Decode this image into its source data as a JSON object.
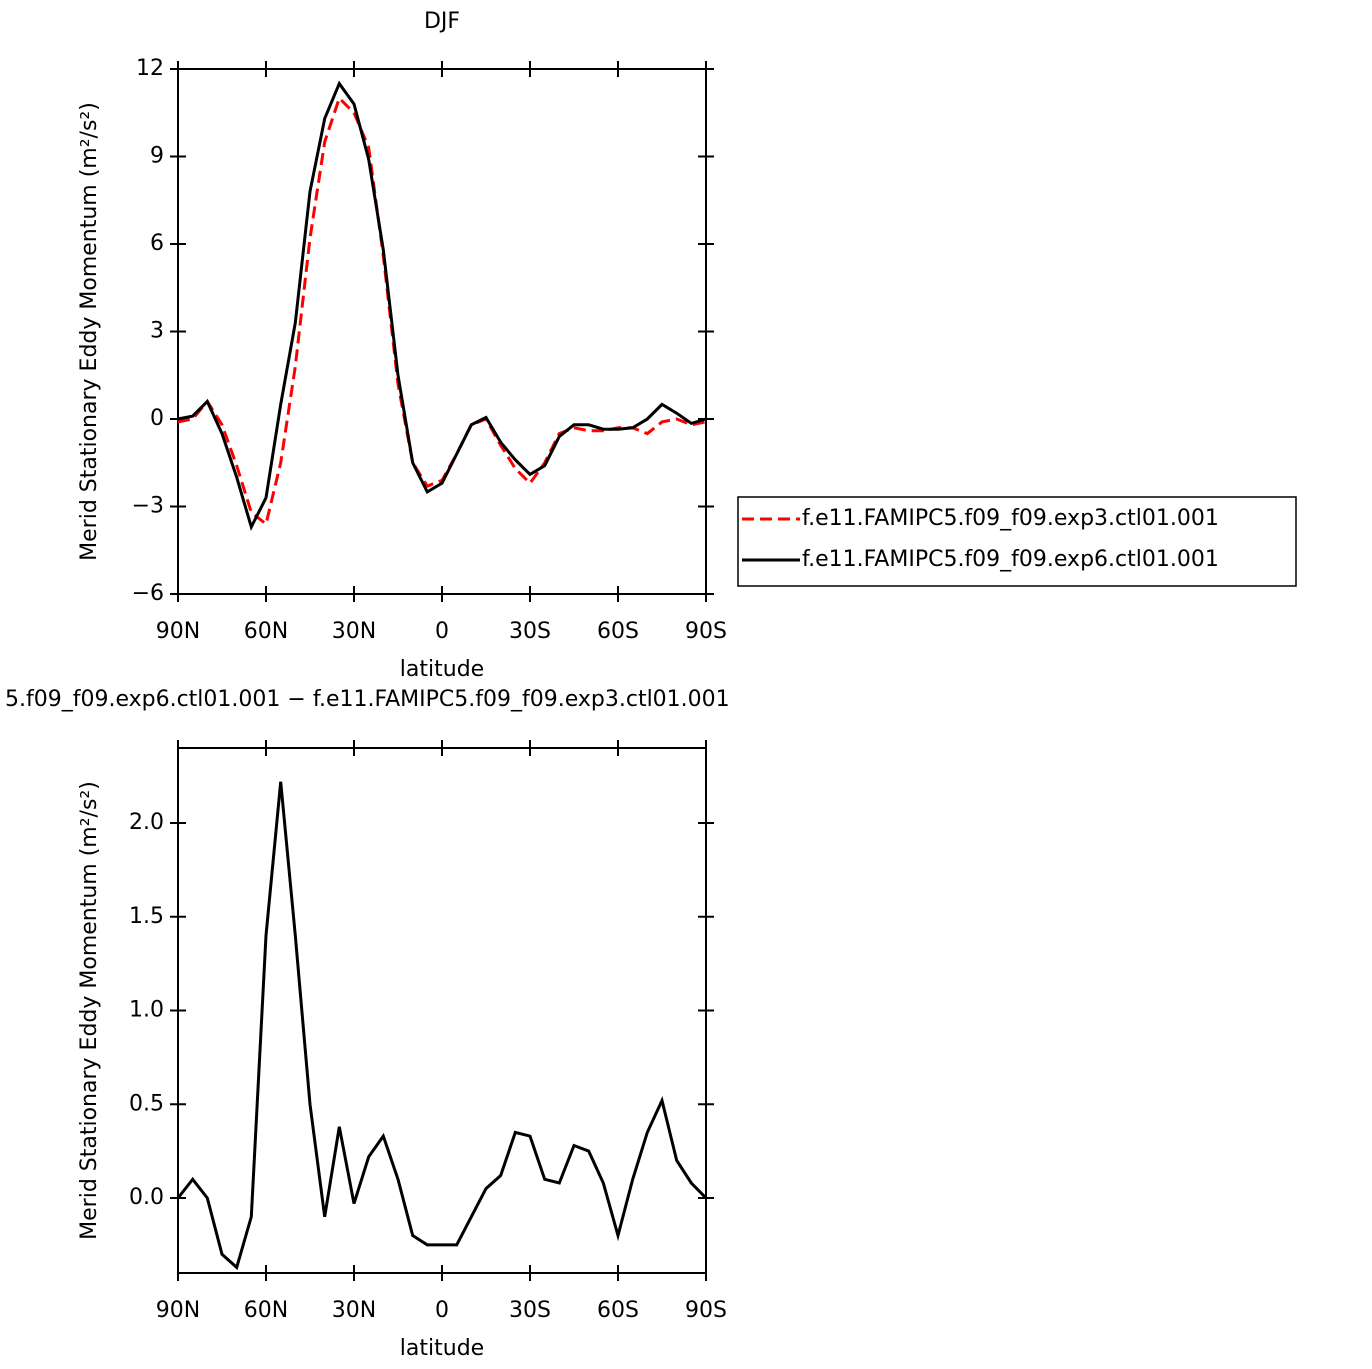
{
  "chart_data": [
    {
      "type": "line",
      "title": "DJF",
      "xlabel": "latitude",
      "ylabel": "Merid Stationary Eddy Momentum (m²/s²)",
      "x": [
        90,
        85,
        80,
        75,
        70,
        65,
        60,
        55,
        50,
        45,
        40,
        35,
        30,
        25,
        20,
        15,
        10,
        5,
        0,
        -5,
        -10,
        -15,
        -20,
        -25,
        -30,
        -35,
        -40,
        -45,
        -50,
        -55,
        -60,
        -65,
        -70,
        -75,
        -80,
        -85,
        -90
      ],
      "series": [
        {
          "name": "f.e11.FAMIPC5.f09_f09.exp3.ctl01.001",
          "color": "#ff0000",
          "dashed": true,
          "values": [
            -0.1,
            0.0,
            0.6,
            -0.2,
            -1.6,
            -3.2,
            -3.6,
            -1.5,
            1.8,
            6.2,
            9.5,
            11.0,
            10.5,
            9.3,
            5.6,
            1.2,
            -1.5,
            -2.3,
            -2.1,
            -1.2,
            -0.2,
            0.0,
            -0.9,
            -1.7,
            -2.2,
            -1.5,
            -0.5,
            -0.3,
            -0.4,
            -0.4,
            -0.3,
            -0.3,
            -0.5,
            -0.1,
            0.0,
            -0.2,
            -0.1
          ]
        },
        {
          "name": "f.e11.FAMIPC5.f09_f09.exp6.ctl01.001",
          "color": "#000000",
          "dashed": false,
          "values": [
            0.0,
            0.1,
            0.6,
            -0.5,
            -2.0,
            -3.7,
            -2.7,
            0.5,
            3.3,
            7.8,
            10.3,
            11.5,
            10.8,
            8.9,
            5.8,
            1.5,
            -1.5,
            -2.5,
            -2.2,
            -1.2,
            -0.2,
            0.05,
            -0.8,
            -1.4,
            -1.9,
            -1.6,
            -0.6,
            -0.2,
            -0.2,
            -0.35,
            -0.35,
            -0.3,
            0.0,
            0.5,
            0.2,
            -0.15,
            0.0
          ]
        }
      ],
      "xlim": [
        90,
        -90
      ],
      "xticks": [
        {
          "value": 90,
          "label": "90N"
        },
        {
          "value": 60,
          "label": "60N"
        },
        {
          "value": 30,
          "label": "30N"
        },
        0,
        {
          "value": -30,
          "label": "30S"
        },
        {
          "value": -60,
          "label": "60S"
        },
        {
          "value": -90,
          "label": "90S"
        }
      ],
      "ylim": [
        -6,
        12
      ],
      "yticks": [
        {
          "value": -6,
          "label": "−6"
        },
        {
          "value": -3,
          "label": "−3"
        },
        0,
        3,
        6,
        9,
        12
      ],
      "legend": "right"
    },
    {
      "type": "line",
      "title": "5.f09_f09.exp6.ctl01.001 − f.e11.FAMIPC5.f09_f09.exp3.ctl01.001",
      "xlabel": "latitude",
      "ylabel": "Merid Stationary Eddy Momentum (m²/s²)",
      "x": [
        90,
        85,
        80,
        75,
        70,
        65,
        60,
        55,
        50,
        45,
        40,
        35,
        30,
        25,
        20,
        15,
        10,
        5,
        0,
        -5,
        -10,
        -15,
        -20,
        -25,
        -30,
        -35,
        -40,
        -45,
        -50,
        -55,
        -60,
        -65,
        -70,
        -75,
        -80,
        -85,
        -90
      ],
      "series": [
        {
          "color": "#000000",
          "dashed": false,
          "values": [
            0.0,
            0.1,
            0.0,
            -0.3,
            -0.37,
            -0.1,
            1.4,
            2.22,
            1.4,
            0.5,
            -0.1,
            0.38,
            -0.03,
            0.22,
            0.33,
            0.1,
            -0.2,
            -0.25,
            -0.25,
            -0.25,
            -0.1,
            0.05,
            0.12,
            0.35,
            0.33,
            0.1,
            0.08,
            0.28,
            0.25,
            0.08,
            -0.2,
            0.1,
            0.35,
            0.52,
            0.2,
            0.08,
            0.0
          ]
        }
      ],
      "xlim": [
        90,
        -90
      ],
      "xticks": [
        {
          "value": 90,
          "label": "90N"
        },
        {
          "value": 60,
          "label": "60N"
        },
        {
          "value": 30,
          "label": "30N"
        },
        0,
        {
          "value": -30,
          "label": "30S"
        },
        {
          "value": -60,
          "label": "60S"
        },
        {
          "value": -90,
          "label": "90S"
        }
      ],
      "ylim": [
        -0.4,
        2.4
      ],
      "yticks": [
        {
          "value": 0,
          "label": "0.0"
        },
        0.5,
        {
          "value": 1,
          "label": "1.0"
        },
        1.5,
        {
          "value": 2,
          "label": "2.0"
        }
      ]
    }
  ]
}
